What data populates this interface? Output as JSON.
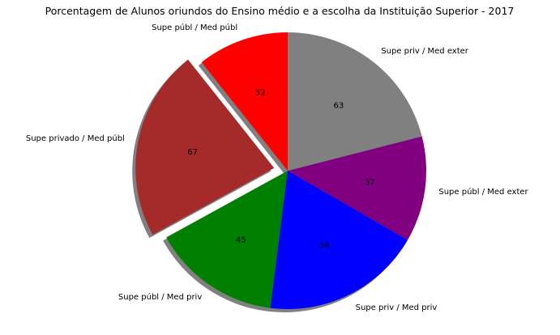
{
  "chart_data": {
    "type": "pie",
    "title": "Porcentagem de Alunos oriundos do Ensino médio e a escolha da Instituição Superior - 2017",
    "slices": [
      {
        "label": "Supe públ / Med públ",
        "value": 32,
        "color": "#ff0000",
        "exploded": false
      },
      {
        "label": "Supe privado / Med públ",
        "value": 67,
        "color": "#a52a2a",
        "exploded": true
      },
      {
        "label": "Supe públ / Med priv",
        "value": 45,
        "color": "#008000",
        "exploded": false
      },
      {
        "label": "Supe priv / Med priv",
        "value": 56,
        "color": "#0000ff",
        "exploded": false
      },
      {
        "label": "Supe públ / Med exter",
        "value": 37,
        "color": "#800080",
        "exploded": false
      },
      {
        "label": "Supe priv / Med exter",
        "value": 63,
        "color": "#808080",
        "exploded": false
      }
    ],
    "start_angle_deg": 90,
    "direction": "counterclockwise",
    "shadow": true,
    "value_display": "raw value"
  }
}
